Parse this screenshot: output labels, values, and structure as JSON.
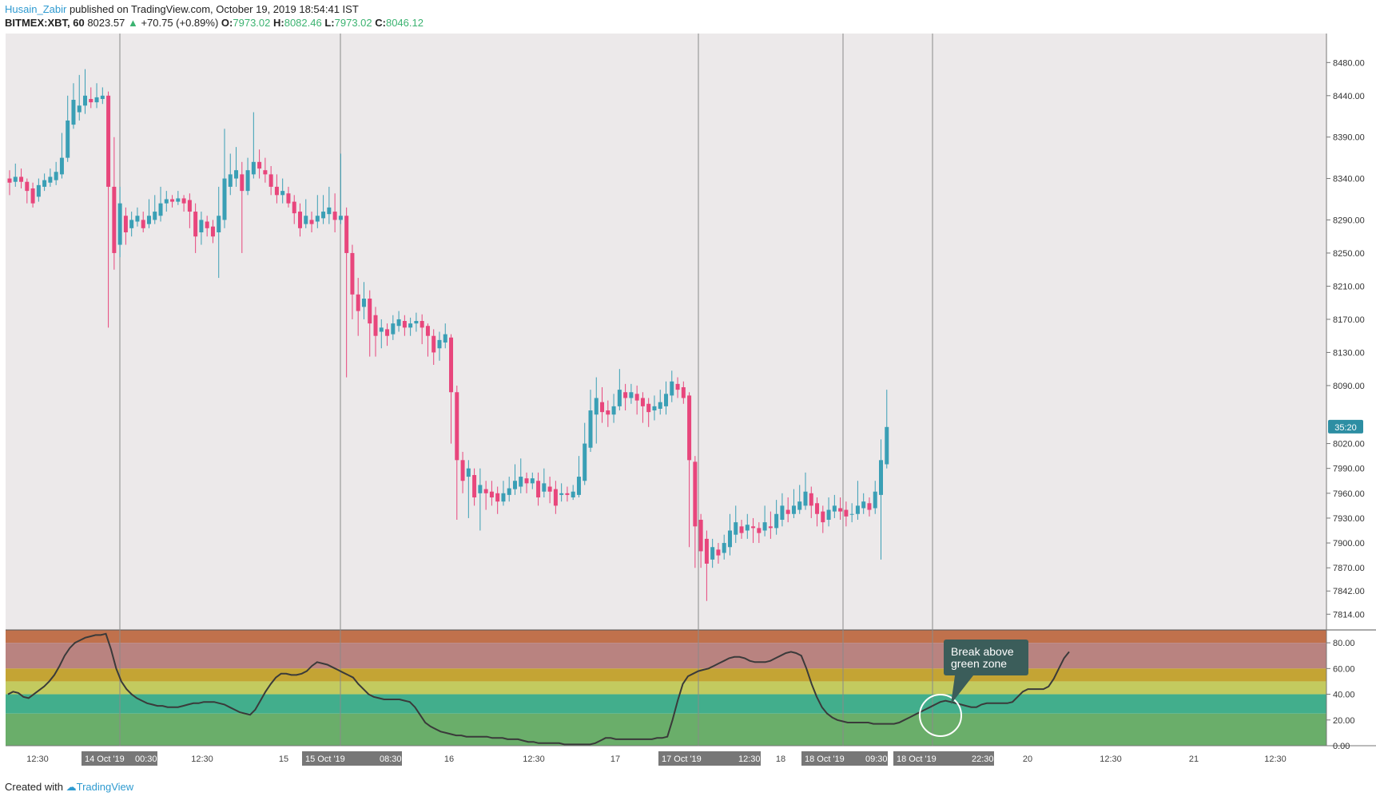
{
  "header": {
    "author": "Husain_Zabir",
    "published": "published on TradingView.com, October 19, 2019 18:54:41 IST",
    "symbol": "BITMEX:XBT, 60",
    "last": "8023.57",
    "change": "+70.75 (+0.89%)",
    "o_label": "O:",
    "o_value": "7973.02",
    "h_label": "H:",
    "h_value": "8082.46",
    "l_label": "L:",
    "l_value": "7973.02",
    "c_label": "C:",
    "c_value": "8046.12"
  },
  "footer": {
    "created_with": "Created with",
    "brand": "TradingView"
  },
  "colors": {
    "up": "#3a9fb5",
    "down": "#e8467c",
    "pane_bg": "#ece9ea",
    "price_tag_bg": "#2d8ea3",
    "annotation_bg": "#3b5d5a",
    "rsi_line": "#3a3a3a",
    "zones": [
      "#c0714c",
      "#b98380",
      "#c4a434",
      "#c3ca5f",
      "#42ae8c",
      "#6aae6a"
    ]
  },
  "annotation": {
    "text_line1": "Break above",
    "text_line2": "green zone"
  },
  "chart_data": [
    {
      "type": "candlestick",
      "price_scale": {
        "labels": [
          "8480.00",
          "8440.00",
          "8390.00",
          "8340.00",
          "8290.00",
          "8250.00",
          "8210.00",
          "8170.00",
          "8130.00",
          "8090.00",
          "8020.00",
          "7990.00",
          "7960.00",
          "7930.00",
          "7900.00",
          "7870.00",
          "7842.00",
          "7814.00"
        ],
        "range": [
          7795,
          8515
        ]
      },
      "current_price_tag": "35:20",
      "candles": [
        [
          8340,
          8335,
          8350,
          8320
        ],
        [
          8336,
          8342,
          8358,
          8330
        ],
        [
          8342,
          8336,
          8352,
          8328
        ],
        [
          8336,
          8325,
          8340,
          8310
        ],
        [
          8328,
          8310,
          8335,
          8305
        ],
        [
          8318,
          8332,
          8340,
          8312
        ],
        [
          8330,
          8338,
          8346,
          8325
        ],
        [
          8335,
          8342,
          8352,
          8330
        ],
        [
          8338,
          8348,
          8360,
          8332
        ],
        [
          8345,
          8365,
          8395,
          8340
        ],
        [
          8365,
          8410,
          8440,
          8360
        ],
        [
          8405,
          8435,
          8455,
          8400
        ],
        [
          8420,
          8428,
          8465,
          8410
        ],
        [
          8428,
          8440,
          8472,
          8418
        ],
        [
          8436,
          8432,
          8450,
          8425
        ],
        [
          8432,
          8438,
          8455,
          8425
        ],
        [
          8436,
          8440,
          8450,
          8430
        ],
        [
          8440,
          8330,
          8445,
          8160
        ],
        [
          8330,
          8250,
          8390,
          8230
        ],
        [
          8260,
          8310,
          8330,
          8245
        ],
        [
          8295,
          8275,
          8305,
          8260
        ],
        [
          8280,
          8290,
          8300,
          8270
        ],
        [
          8288,
          8295,
          8305,
          8282
        ],
        [
          8290,
          8280,
          8300,
          8275
        ],
        [
          8285,
          8295,
          8315,
          8280
        ],
        [
          8290,
          8300,
          8320,
          8285
        ],
        [
          8295,
          8310,
          8330,
          8288
        ],
        [
          8310,
          8315,
          8325,
          8300
        ],
        [
          8315,
          8312,
          8320,
          8305
        ],
        [
          8312,
          8316,
          8325,
          8308
        ],
        [
          8316,
          8310,
          8320,
          8300
        ],
        [
          8314,
          8300,
          8322,
          8280
        ],
        [
          8300,
          8270,
          8310,
          8250
        ],
        [
          8275,
          8290,
          8300,
          8260
        ],
        [
          8288,
          8280,
          8295,
          8270
        ],
        [
          8282,
          8270,
          8290,
          8262
        ],
        [
          8275,
          8295,
          8330,
          8220
        ],
        [
          8290,
          8340,
          8400,
          8280
        ],
        [
          8330,
          8345,
          8370,
          8320
        ],
        [
          8340,
          8350,
          8378,
          8330
        ],
        [
          8345,
          8325,
          8360,
          8250
        ],
        [
          8325,
          8350,
          8365,
          8320
        ],
        [
          8345,
          8360,
          8420,
          8340
        ],
        [
          8360,
          8352,
          8375,
          8340
        ],
        [
          8350,
          8345,
          8365,
          8335
        ],
        [
          8345,
          8330,
          8355,
          8320
        ],
        [
          8330,
          8320,
          8345,
          8310
        ],
        [
          8320,
          8325,
          8340,
          8310
        ],
        [
          8322,
          8310,
          8330,
          8305
        ],
        [
          8312,
          8298,
          8320,
          8285
        ],
        [
          8300,
          8280,
          8310,
          8270
        ],
        [
          8285,
          8295,
          8315,
          8280
        ],
        [
          8290,
          8285,
          8300,
          8275
        ],
        [
          8288,
          8295,
          8320,
          8280
        ],
        [
          8292,
          8300,
          8320,
          8285
        ],
        [
          8297,
          8305,
          8330,
          8285
        ],
        [
          8300,
          8290,
          8322,
          8275
        ],
        [
          8290,
          8295,
          8370,
          8285
        ],
        [
          8295,
          8250,
          8305,
          8100
        ],
        [
          8250,
          8200,
          8260,
          8170
        ],
        [
          8200,
          8180,
          8220,
          8150
        ],
        [
          8185,
          8195,
          8215,
          8170
        ],
        [
          8195,
          8165,
          8205,
          8125
        ],
        [
          8175,
          8150,
          8185,
          8125
        ],
        [
          8155,
          8160,
          8170,
          8135
        ],
        [
          8158,
          8150,
          8165,
          8138
        ],
        [
          8152,
          8165,
          8175,
          8145
        ],
        [
          8162,
          8170,
          8180,
          8155
        ],
        [
          8168,
          8160,
          8175,
          8150
        ],
        [
          8160,
          8165,
          8172,
          8150
        ],
        [
          8165,
          8168,
          8178,
          8155
        ],
        [
          8168,
          8160,
          8176,
          8140
        ],
        [
          8162,
          8150,
          8165,
          8125
        ],
        [
          8150,
          8130,
          8158,
          8115
        ],
        [
          8135,
          8145,
          8155,
          8120
        ],
        [
          8142,
          8152,
          8165,
          8135
        ],
        [
          8148,
          8082,
          8152,
          8020
        ],
        [
          8082,
          8000,
          8090,
          7928
        ],
        [
          8000,
          7975,
          8010,
          7960
        ],
        [
          7980,
          7990,
          8000,
          7930
        ],
        [
          7982,
          7955,
          7990,
          7945
        ],
        [
          7960,
          7970,
          7990,
          7915
        ],
        [
          7965,
          7960,
          7975,
          7940
        ],
        [
          7962,
          7955,
          7975,
          7945
        ],
        [
          7960,
          7950,
          7968,
          7935
        ],
        [
          7950,
          7960,
          7975,
          7945
        ],
        [
          7958,
          7966,
          7980,
          7950
        ],
        [
          7965,
          7975,
          7995,
          7958
        ],
        [
          7968,
          7980,
          8002,
          7960
        ],
        [
          7978,
          7972,
          7985,
          7960
        ],
        [
          7972,
          7978,
          7985,
          7965
        ],
        [
          7975,
          7955,
          7985,
          7945
        ],
        [
          7962,
          7972,
          7990,
          7955
        ],
        [
          7968,
          7962,
          7980,
          7948
        ],
        [
          7965,
          7945,
          7975,
          7935
        ],
        [
          7958,
          7960,
          7972,
          7950
        ],
        [
          7960,
          7958,
          7968,
          7950
        ],
        [
          7955,
          7962,
          7970,
          7952
        ],
        [
          7958,
          7980,
          8005,
          7955
        ],
        [
          7975,
          8020,
          8045,
          7970
        ],
        [
          8015,
          8060,
          8085,
          8010
        ],
        [
          8055,
          8075,
          8100,
          8020
        ],
        [
          8070,
          8058,
          8088,
          8045
        ],
        [
          8060,
          8055,
          8072,
          8040
        ],
        [
          8055,
          8065,
          8080,
          8045
        ],
        [
          8065,
          8085,
          8110,
          8060
        ],
        [
          8082,
          8075,
          8092,
          8060
        ],
        [
          8075,
          8082,
          8092,
          8068
        ],
        [
          8080,
          8072,
          8090,
          8055
        ],
        [
          8075,
          8065,
          8082,
          8045
        ],
        [
          8068,
          8058,
          8075,
          8040
        ],
        [
          8060,
          8065,
          8078,
          8048
        ],
        [
          8062,
          8070,
          8085,
          8055
        ],
        [
          8065,
          8080,
          8095,
          8055
        ],
        [
          8078,
          8095,
          8108,
          8070
        ],
        [
          8092,
          8085,
          8100,
          8075
        ],
        [
          8088,
          8075,
          8095,
          8068
        ],
        [
          8078,
          8000,
          8082,
          7895
        ],
        [
          7998,
          7920,
          8005,
          7870
        ],
        [
          7928,
          7890,
          7935,
          7870
        ],
        [
          7905,
          7875,
          7915,
          7830
        ],
        [
          7880,
          7895,
          7905,
          7870
        ],
        [
          7892,
          7885,
          7900,
          7875
        ],
        [
          7888,
          7900,
          7910,
          7880
        ],
        [
          7895,
          7915,
          7935,
          7885
        ],
        [
          7910,
          7925,
          7945,
          7900
        ],
        [
          7920,
          7912,
          7928,
          7905
        ],
        [
          7915,
          7922,
          7935,
          7905
        ],
        [
          7920,
          7918,
          7930,
          7900
        ],
        [
          7918,
          7912,
          7925,
          7900
        ],
        [
          7915,
          7925,
          7945,
          7908
        ],
        [
          7920,
          7918,
          7938,
          7905
        ],
        [
          7918,
          7935,
          7952,
          7910
        ],
        [
          7928,
          7945,
          7960,
          7920
        ],
        [
          7940,
          7935,
          7955,
          7925
        ],
        [
          7935,
          7945,
          7965,
          7930
        ],
        [
          7940,
          7950,
          7970,
          7935
        ],
        [
          7945,
          7962,
          7985,
          7940
        ],
        [
          7960,
          7945,
          7968,
          7930
        ],
        [
          7948,
          7935,
          7955,
          7920
        ],
        [
          7938,
          7925,
          7945,
          7912
        ],
        [
          7928,
          7940,
          7955,
          7920
        ],
        [
          7938,
          7945,
          7958,
          7930
        ],
        [
          7942,
          7938,
          7955,
          7928
        ],
        [
          7940,
          7932,
          7950,
          7920
        ],
        [
          7935,
          7935,
          7948,
          7925
        ],
        [
          7935,
          7945,
          7975,
          7928
        ],
        [
          7942,
          7950,
          7960,
          7935
        ],
        [
          7948,
          7940,
          7955,
          7932
        ],
        [
          7942,
          7962,
          7975,
          7935
        ],
        [
          7958,
          8000,
          8025,
          7880
        ],
        [
          7995,
          8040,
          8085,
          7990
        ]
      ]
    },
    {
      "type": "line",
      "scale_labels": [
        "80.00",
        "60.00",
        "40.00",
        "20.00",
        "0.00"
      ],
      "y_range": [
        0,
        90
      ],
      "zones": [
        [
          80,
          90
        ],
        [
          60,
          80
        ],
        [
          50,
          60
        ],
        [
          40,
          50
        ],
        [
          25,
          40
        ],
        [
          0,
          25
        ]
      ],
      "values": [
        40,
        42,
        41,
        38,
        37,
        40,
        43,
        46,
        50,
        55,
        62,
        70,
        76,
        80,
        82,
        84,
        85,
        86,
        86,
        87,
        75,
        60,
        50,
        44,
        40,
        37,
        35,
        33,
        32,
        31,
        31,
        30,
        30,
        30,
        31,
        32,
        33,
        33,
        34,
        34,
        34,
        33,
        32,
        30,
        28,
        26,
        25,
        24,
        28,
        35,
        42,
        48,
        53,
        56,
        56,
        55,
        55,
        56,
        58,
        62,
        65,
        64,
        63,
        61,
        59,
        57,
        55,
        53,
        48,
        44,
        40,
        38,
        37,
        36,
        36,
        36,
        36,
        35,
        34,
        30,
        24,
        18,
        15,
        13,
        11,
        10,
        9,
        8,
        8,
        7,
        7,
        7,
        7,
        7,
        6,
        6,
        6,
        5,
        5,
        5,
        4,
        3,
        3,
        2,
        2,
        2,
        2,
        2,
        1,
        1,
        1,
        1,
        1,
        1,
        2,
        4,
        6,
        6,
        5,
        5,
        5,
        5,
        5,
        5,
        5,
        5,
        6,
        6,
        7,
        20,
        35,
        48,
        54,
        56,
        58,
        59,
        60,
        62,
        64,
        66,
        68,
        69,
        69,
        68,
        66,
        65,
        65,
        65,
        66,
        68,
        70,
        72,
        73,
        72,
        70,
        60,
        48,
        38,
        30,
        25,
        22,
        20,
        19,
        18,
        18,
        18,
        18,
        18,
        17,
        17,
        17,
        17,
        17,
        18,
        20,
        22,
        24,
        26,
        28,
        30,
        32,
        34,
        35,
        34,
        33,
        32,
        31,
        30,
        30,
        32,
        33,
        33,
        33,
        33,
        33,
        34,
        38,
        42,
        44,
        44,
        44,
        44,
        46,
        52,
        60,
        68,
        73
      ]
    }
  ],
  "time_axis": {
    "ticks": [
      "12:30",
      "12:30",
      "15",
      "16",
      "12:30",
      "17",
      "18",
      "20",
      "12:30",
      "21",
      "12:30",
      "12:30"
    ],
    "badges": [
      "14 Oct '19",
      "00:30",
      "15 Oct '19",
      "08:30",
      "17 Oct '19",
      "12:30",
      "18 Oct '19",
      "09:30",
      "18 Oct '19",
      "22:30"
    ]
  }
}
